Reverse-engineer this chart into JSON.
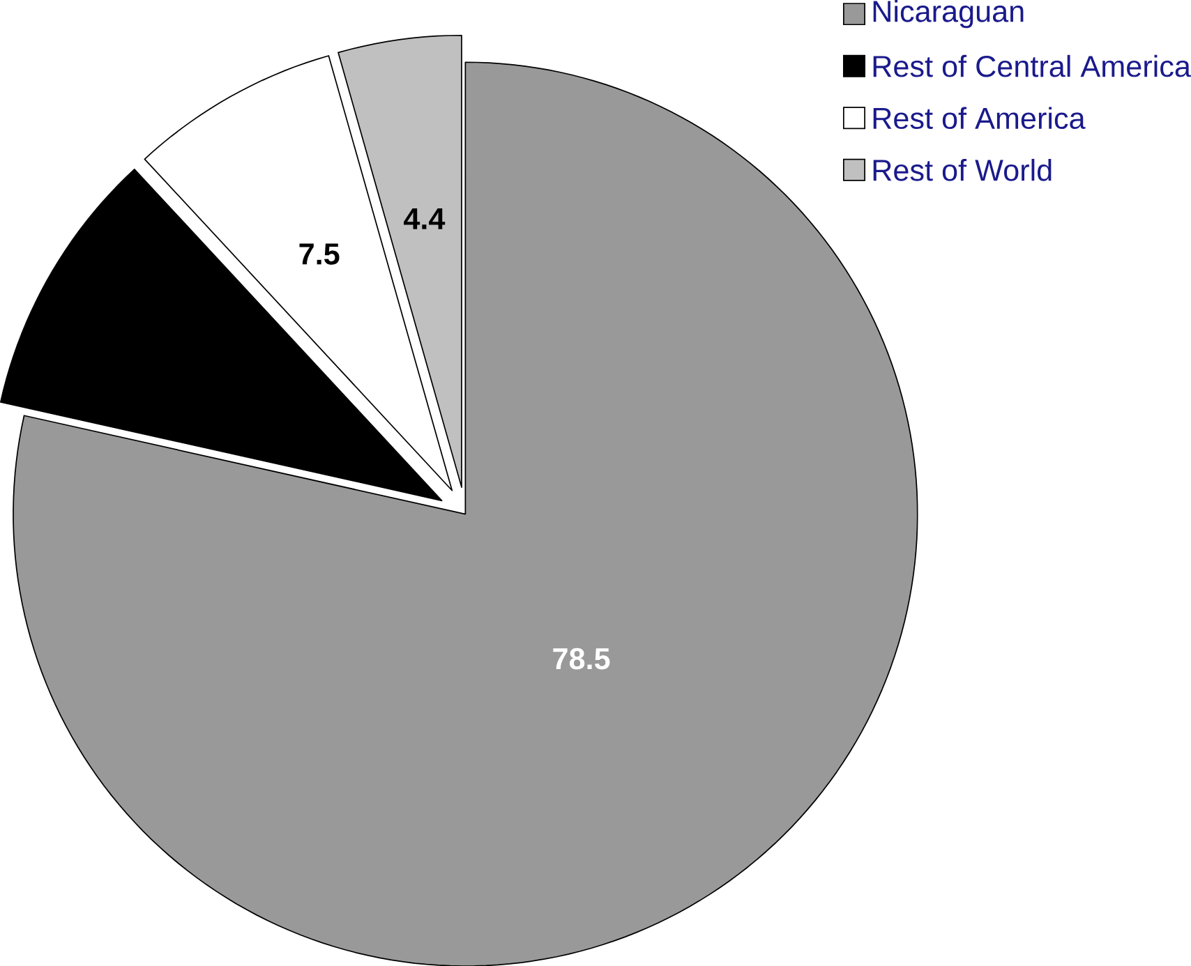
{
  "chart_data": {
    "type": "pie",
    "categories": [
      "Nicaraguan",
      "Rest of Central America",
      "Rest of America",
      "Rest of World"
    ],
    "values": [
      78.5,
      9.6,
      7.5,
      4.4
    ],
    "colors": [
      "#999999",
      "#000000",
      "#ffffff",
      "#c0c0c0"
    ],
    "value_labels": [
      "78.5",
      null,
      "7.5",
      "4.4"
    ],
    "legend": "top right"
  }
}
